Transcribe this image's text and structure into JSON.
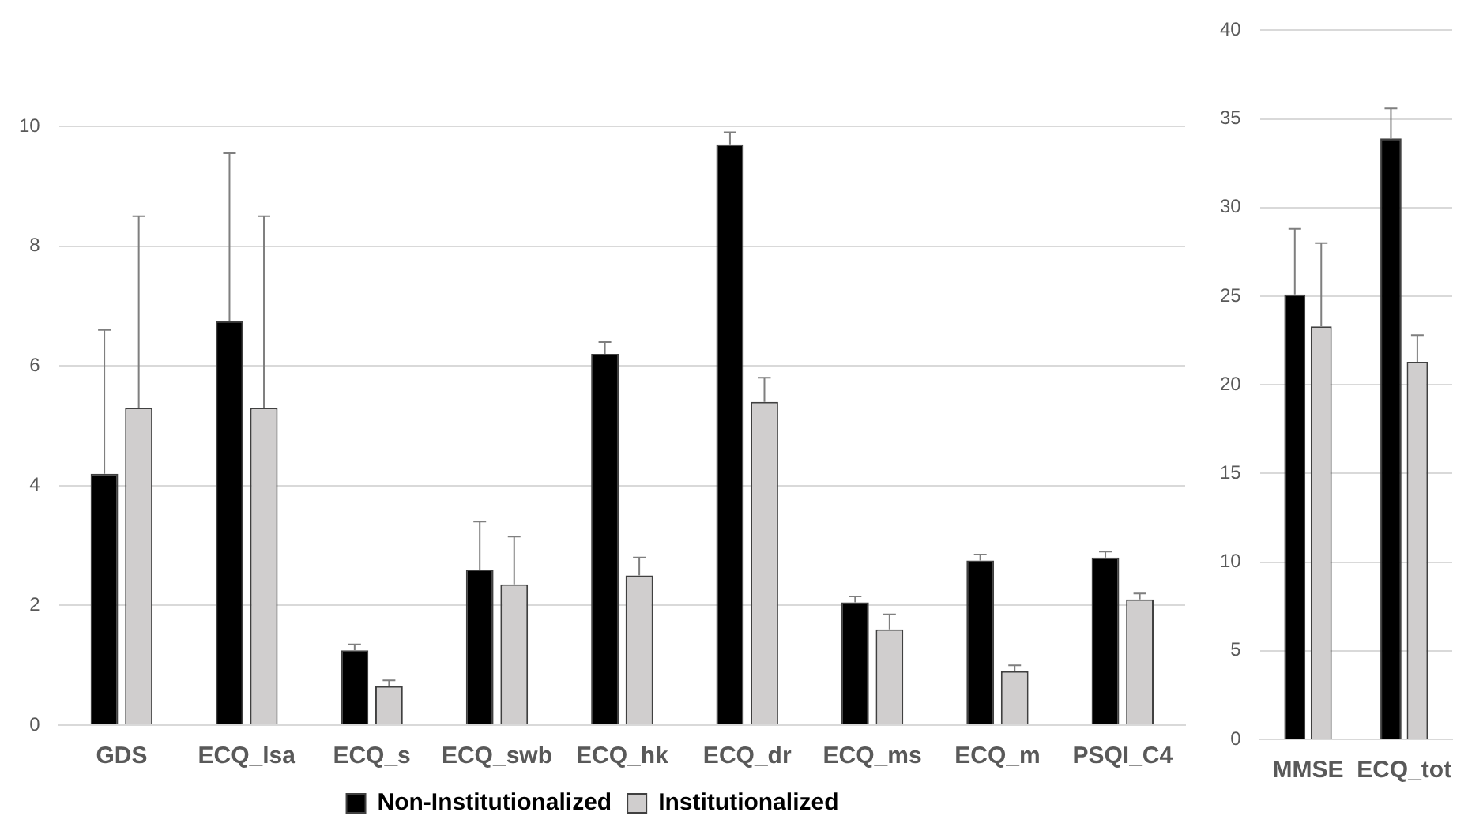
{
  "chart_data": [
    {
      "type": "bar",
      "categories": [
        "GDS",
        "ECQ_lsa",
        "ECQ_s",
        "ECQ_swb",
        "ECQ_hk",
        "ECQ_dr",
        "ECQ_ms",
        "ECQ_m",
        "PSQI_C4"
      ],
      "ylim": [
        0,
        10
      ],
      "yticks": [
        0,
        2,
        4,
        6,
        8,
        10
      ],
      "grid": "y",
      "legend": "bottom",
      "series": [
        {
          "name": "Non-Institutionalized",
          "color": "#000000",
          "values": [
            4.2,
            6.75,
            1.25,
            2.6,
            6.2,
            9.7,
            2.05,
            2.75,
            2.8
          ],
          "errors": [
            [
              4.2,
              6.6
            ],
            [
              6.75,
              9.55
            ],
            [
              1.25,
              1.35
            ],
            [
              2.6,
              3.4
            ],
            [
              6.2,
              6.4
            ],
            [
              9.7,
              9.9
            ],
            [
              2.05,
              2.15
            ],
            [
              2.75,
              2.85
            ],
            [
              2.8,
              2.9
            ]
          ]
        },
        {
          "name": "Institutionalized",
          "color": "#d0cece",
          "values": [
            5.3,
            5.3,
            0.65,
            2.35,
            2.5,
            5.4,
            1.6,
            0.9,
            2.1
          ],
          "errors": [
            [
              5.3,
              8.5
            ],
            [
              5.3,
              8.5
            ],
            [
              0.65,
              0.75
            ],
            [
              2.35,
              3.15
            ],
            [
              2.5,
              2.8
            ],
            [
              5.4,
              5.8
            ],
            [
              1.6,
              1.85
            ],
            [
              0.9,
              1
            ],
            [
              2.1,
              2.2
            ]
          ]
        }
      ]
    },
    {
      "type": "bar",
      "categories": [
        "MMSE",
        "ECQ_tot"
      ],
      "ylim": [
        0,
        40
      ],
      "yticks": [
        0,
        5,
        10,
        15,
        20,
        25,
        30,
        35,
        40
      ],
      "grid": "y",
      "series": [
        {
          "color": "#000000",
          "values": [
            25.1,
            33.9
          ],
          "errors": [
            [
              25.1,
              28.8
            ],
            [
              33.9,
              35.6
            ]
          ]
        },
        {
          "color": "#d0cece",
          "values": [
            23.3,
            21.3
          ],
          "errors": [
            [
              23.3,
              28
            ],
            [
              21.3,
              22.8
            ]
          ]
        }
      ]
    }
  ]
}
